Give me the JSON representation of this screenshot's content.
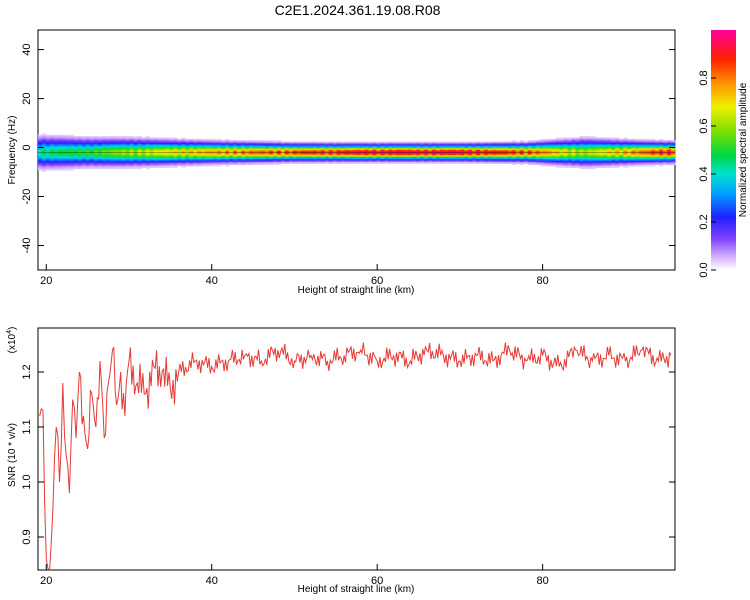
{
  "title": "C2E1.2024.361.19.08.R08",
  "chart_data": [
    {
      "type": "heatmap",
      "xlabel": "Height of straight line (km)",
      "ylabel": "Frequency (Hz)",
      "xlim": [
        19,
        96
      ],
      "ylim": [
        -50,
        48
      ],
      "xticks": [
        "20",
        "40",
        "60",
        "80"
      ],
      "yticks": [
        "40",
        "20",
        "0",
        "-20",
        "-40"
      ],
      "band_center_hz": -2,
      "band": [
        {
          "height_km": 20,
          "amplitude": 0.45,
          "halfwidth_hz": 4.5
        },
        {
          "height_km": 25,
          "amplitude": 0.5,
          "halfwidth_hz": 4.0
        },
        {
          "height_km": 30,
          "amplitude": 0.6,
          "halfwidth_hz": 3.8
        },
        {
          "height_km": 40,
          "amplitude": 0.75,
          "halfwidth_hz": 3.0
        },
        {
          "height_km": 50,
          "amplitude": 0.85,
          "halfwidth_hz": 2.5
        },
        {
          "height_km": 60,
          "amplitude": 0.95,
          "halfwidth_hz": 2.4
        },
        {
          "height_km": 70,
          "amplitude": 0.95,
          "halfwidth_hz": 2.4
        },
        {
          "height_km": 78,
          "amplitude": 0.85,
          "halfwidth_hz": 2.6
        },
        {
          "height_km": 85,
          "amplitude": 0.6,
          "halfwidth_hz": 3.8
        },
        {
          "height_km": 92,
          "amplitude": 0.8,
          "halfwidth_hz": 3.0
        },
        {
          "height_km": 95,
          "amplitude": 0.9,
          "halfwidth_hz": 2.8
        }
      ],
      "colorbar": {
        "label": "Normalized spectral amplitude",
        "range": [
          0,
          1
        ],
        "ticks": [
          "0.0",
          "0.2",
          "0.4",
          "0.6",
          "0.8"
        ]
      }
    },
    {
      "type": "line",
      "xlabel": "Height of straight line (km)",
      "ylabel": "SNR (10 * v/v)",
      "y_multiplier": "(x10",
      "y_multiplier_exp": "4",
      "y_multiplier_close": ")",
      "xlim": [
        19,
        96
      ],
      "ylim": [
        0.84,
        1.28
      ],
      "xticks": [
        "20",
        "40",
        "60",
        "80"
      ],
      "yticks": [
        "1.2",
        "1.1",
        "1.0",
        "0.9"
      ],
      "line_color": "#e53935",
      "x": [
        19.2,
        19.6,
        20.0,
        20.4,
        20.8,
        21.2,
        21.6,
        22.0,
        22.4,
        22.8,
        23.2,
        23.6,
        24.0,
        24.5,
        25.0,
        25.5,
        26.0,
        26.5,
        27.0,
        27.5,
        28.0,
        28.5,
        29.0,
        29.5,
        30.0,
        31,
        32,
        33,
        34,
        35,
        36,
        38,
        40,
        42,
        44,
        46,
        48,
        50,
        52,
        54,
        56,
        58,
        60,
        62,
        64,
        66,
        68,
        70,
        72,
        74,
        76,
        78,
        80,
        82,
        84,
        86,
        88,
        90,
        92,
        94,
        95.5
      ],
      "y": [
        1.12,
        1.13,
        0.86,
        0.84,
        0.95,
        1.1,
        1.0,
        1.18,
        1.05,
        0.98,
        1.15,
        1.08,
        1.2,
        1.12,
        1.06,
        1.16,
        1.1,
        1.22,
        1.08,
        1.18,
        1.24,
        1.14,
        1.2,
        1.12,
        1.22,
        1.18,
        1.16,
        1.21,
        1.2,
        1.17,
        1.2,
        1.22,
        1.21,
        1.22,
        1.23,
        1.22,
        1.24,
        1.22,
        1.23,
        1.22,
        1.23,
        1.24,
        1.22,
        1.23,
        1.22,
        1.24,
        1.23,
        1.22,
        1.23,
        1.22,
        1.24,
        1.22,
        1.23,
        1.21,
        1.24,
        1.22,
        1.23,
        1.22,
        1.24,
        1.22,
        1.23
      ]
    }
  ]
}
